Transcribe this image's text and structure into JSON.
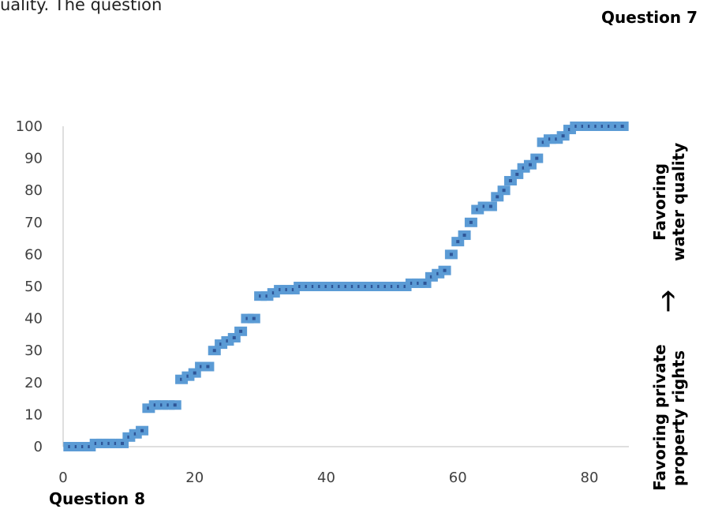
{
  "intro_text": "uality. The question",
  "question7_label": "Question 7",
  "question8_label": "Question 8",
  "right_labels": {
    "top_line1": "Favoring",
    "top_line2": "water quality",
    "arrow": "🡑",
    "bottom_line1": "Favoring private",
    "bottom_line2": "property rights"
  },
  "colors": {
    "series": "#5b9bd5",
    "marker_center": "#2e5597",
    "axis": "#bfbfbf"
  },
  "chart_data": {
    "type": "scatter",
    "title": "",
    "xlabel": "Question 8",
    "ylabel": "",
    "xlim": [
      0,
      86
    ],
    "ylim": [
      0,
      100
    ],
    "xticks": [
      0,
      20,
      40,
      60,
      80
    ],
    "yticks": [
      0,
      10,
      20,
      30,
      40,
      50,
      60,
      70,
      80,
      90,
      100
    ],
    "grid": false,
    "series": [
      {
        "marker": "square",
        "x": [
          1,
          2,
          3,
          4,
          5,
          6,
          7,
          8,
          9,
          10,
          11,
          12,
          13,
          14,
          15,
          16,
          17,
          18,
          19,
          20,
          21,
          22,
          23,
          24,
          25,
          26,
          27,
          28,
          29,
          30,
          31,
          32,
          33,
          34,
          35,
          36,
          37,
          38,
          39,
          40,
          41,
          42,
          43,
          44,
          45,
          46,
          47,
          48,
          49,
          50,
          51,
          52,
          53,
          54,
          55,
          56,
          57,
          58,
          59,
          60,
          61,
          62,
          63,
          64,
          65,
          66,
          67,
          68,
          69,
          70,
          71,
          72,
          73,
          74,
          75,
          76,
          77,
          78,
          79,
          80,
          81,
          82,
          83,
          84,
          85
        ],
        "y": [
          0,
          0,
          0,
          0,
          1,
          1,
          1,
          1,
          1,
          3,
          4,
          5,
          12,
          13,
          13,
          13,
          13,
          21,
          22,
          23,
          25,
          25,
          30,
          32,
          33,
          34,
          36,
          40,
          40,
          47,
          47,
          48,
          49,
          49,
          49,
          50,
          50,
          50,
          50,
          50,
          50,
          50,
          50,
          50,
          50,
          50,
          50,
          50,
          50,
          50,
          50,
          50,
          51,
          51,
          51,
          53,
          54,
          55,
          60,
          64,
          66,
          70,
          74,
          75,
          75,
          78,
          80,
          83,
          85,
          87,
          88,
          90,
          95,
          96,
          96,
          97,
          99,
          100,
          100,
          100,
          100,
          100,
          100,
          100,
          100
        ]
      }
    ]
  }
}
